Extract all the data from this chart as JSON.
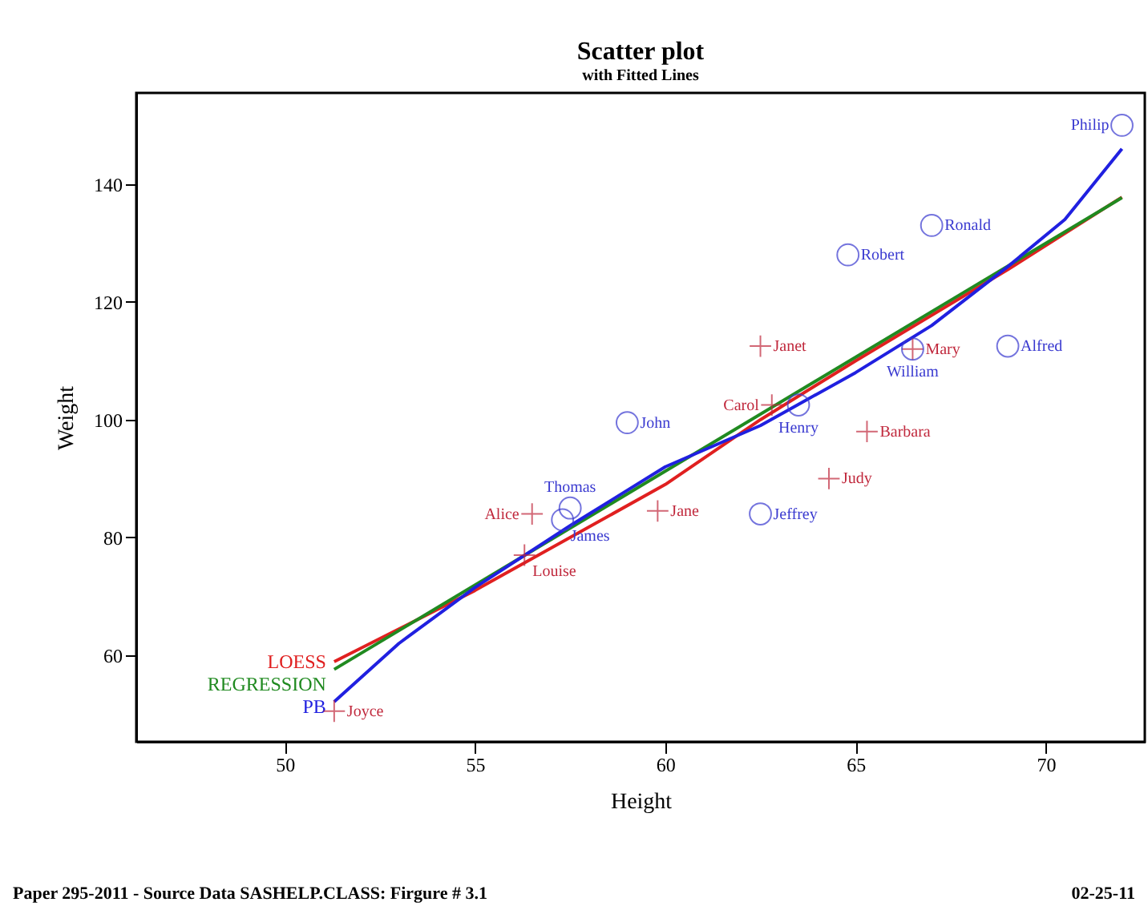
{
  "chart_data": {
    "type": "scatter",
    "title": "Scatter plot",
    "subtitle": "with Fitted Lines",
    "xlabel": "Height",
    "ylabel": "Weight",
    "xlim": [
      46.1,
      72.6
    ],
    "ylim": [
      45.3,
      155.5
    ],
    "xticks": [
      50,
      55,
      60,
      65,
      70
    ],
    "yticks": [
      60,
      80,
      100,
      120,
      140
    ],
    "grid": false,
    "annotations": [
      "Paper 295-2011 - Source Data SASHELP.CLASS: Firgure # 3.1",
      "02-25-11"
    ],
    "series": [
      {
        "marker": "cross",
        "color": "#c0283c",
        "x": [
          56.5,
          65.3,
          62.8,
          59.8,
          62.5,
          51.3,
          64.3,
          56.3,
          66.5
        ],
        "values": [
          84,
          98,
          102.5,
          84.5,
          112.5,
          50.5,
          90,
          77,
          112
        ],
        "value_labels": [
          "Alice",
          "Barbara",
          "Carol",
          "Jane",
          "Janet",
          "Joyce",
          "Judy",
          "Louise",
          "Mary"
        ]
      },
      {
        "marker": "circle",
        "color": "#3a3ad0",
        "x": [
          69,
          63.5,
          57.3,
          62.5,
          59,
          72,
          64.8,
          67,
          57.5,
          66.5
        ],
        "values": [
          112.5,
          102.5,
          83,
          84,
          99.5,
          150,
          128,
          133,
          85,
          112
        ],
        "value_labels": [
          "Alfred",
          "Henry",
          "James",
          "Jeffrey",
          "John",
          "Philip",
          "Robert",
          "Ronald",
          "Thomas",
          "William"
        ]
      },
      {
        "type": "line",
        "name": "LOESS",
        "color": "#e02020",
        "x": [
          51.3,
          55,
          60,
          62.5,
          65,
          69,
          72
        ],
        "values": [
          58.9,
          71,
          89,
          100,
          110,
          125.5,
          137.8
        ]
      },
      {
        "type": "line",
        "name": "REGRESSION",
        "color": "#208a20",
        "x": [
          51.3,
          72
        ],
        "values": [
          57.6,
          137.7
        ]
      },
      {
        "type": "line",
        "name": "PB",
        "color": "#2020e0",
        "x": [
          51.3,
          53,
          55,
          57.5,
          60,
          62.5,
          65,
          67,
          69,
          70.5,
          72
        ],
        "values": [
          52.1,
          62,
          71.5,
          82,
          92,
          99,
          108,
          116,
          126,
          134,
          146
        ]
      }
    ]
  }
}
